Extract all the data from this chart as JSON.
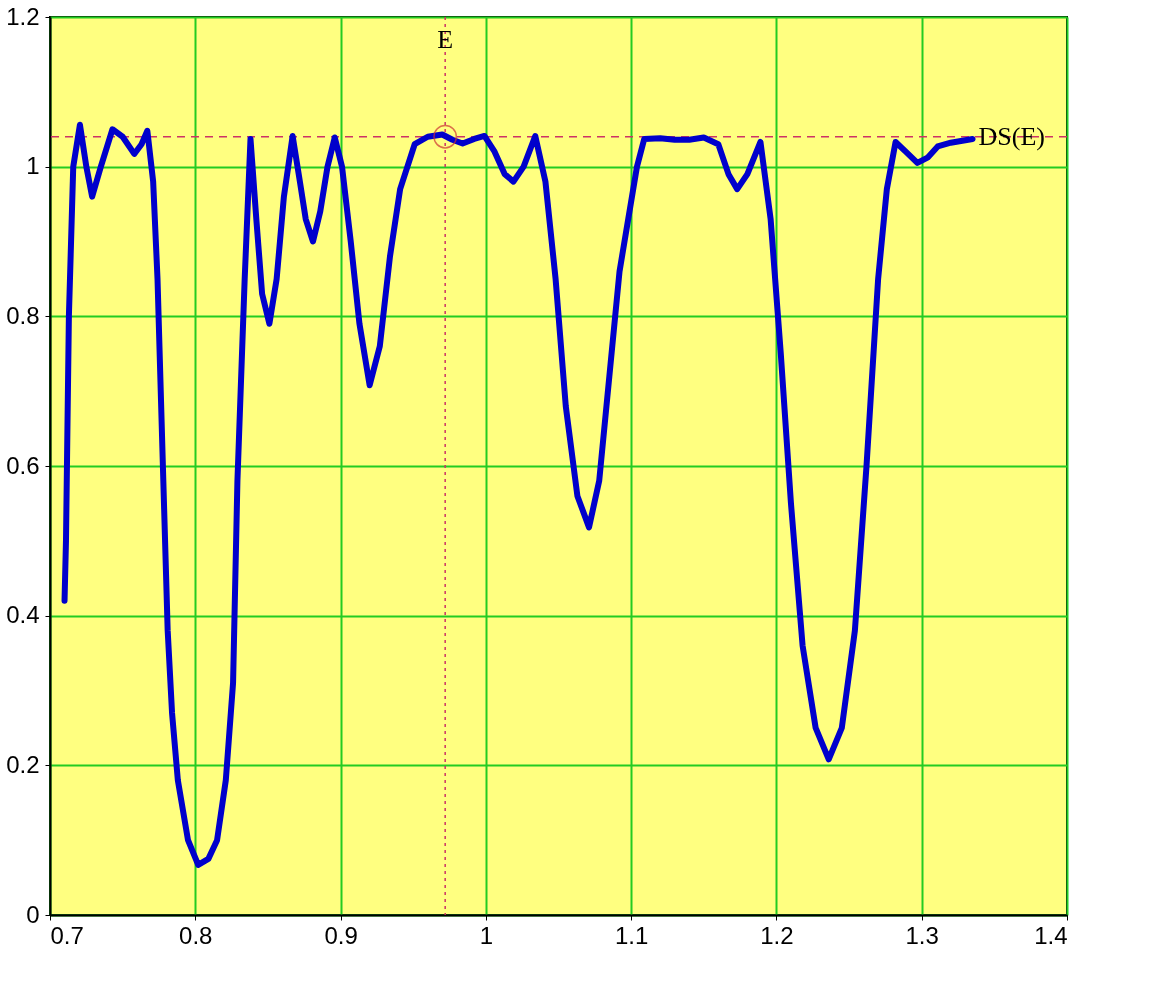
{
  "chart_data": {
    "type": "line",
    "series": [
      {
        "color": "#0000cc",
        "x": [
          0.71,
          0.711,
          0.713,
          0.716,
          0.7206,
          0.725,
          0.729,
          0.735,
          0.743,
          0.75,
          0.758,
          0.763,
          0.767,
          0.771,
          0.774,
          0.778,
          0.781,
          0.784,
          0.788,
          0.795,
          0.802,
          0.809,
          0.815,
          0.821,
          0.826,
          0.829,
          0.834,
          0.838,
          0.842,
          0.846,
          0.851,
          0.856,
          0.861,
          0.867,
          0.872,
          0.876,
          0.881,
          0.886,
          0.891,
          0.896,
          0.901,
          0.907,
          0.913,
          0.92,
          0.927,
          0.934,
          0.941,
          0.951,
          0.96,
          0.97,
          0.977,
          0.984,
          0.992,
          0.999,
          1.006,
          1.013,
          1.019,
          1.026,
          1.034,
          1.041,
          1.048,
          1.055,
          1.063,
          1.071,
          1.078,
          1.085,
          1.092,
          1.098,
          1.104,
          1.109,
          1.12,
          1.13,
          1.14,
          1.15,
          1.16,
          1.167,
          1.173,
          1.18,
          1.189,
          1.196,
          1.203,
          1.21,
          1.218,
          1.227,
          1.236,
          1.245,
          1.254,
          1.262,
          1.27,
          1.276,
          1.282,
          1.289,
          1.297,
          1.304,
          1.311,
          1.32,
          1.335
        ],
        "values": [
          0.42,
          0.5,
          0.8,
          1.0,
          1.056,
          1.0,
          0.96,
          1.0,
          1.05,
          1.04,
          1.017,
          1.03,
          1.048,
          0.98,
          0.85,
          0.58,
          0.38,
          0.27,
          0.18,
          0.1,
          0.067,
          0.075,
          0.1,
          0.18,
          0.31,
          0.58,
          0.85,
          1.037,
          0.93,
          0.83,
          0.79,
          0.85,
          0.96,
          1.041,
          0.98,
          0.93,
          0.9,
          0.94,
          1.0,
          1.039,
          1.0,
          0.9,
          0.79,
          0.708,
          0.76,
          0.88,
          0.97,
          1.03,
          1.04,
          1.043,
          1.036,
          1.031,
          1.037,
          1.041,
          1.02,
          0.99,
          0.98,
          1.0,
          1.041,
          0.98,
          0.85,
          0.68,
          0.56,
          0.518,
          0.58,
          0.72,
          0.86,
          0.93,
          1.0,
          1.037,
          1.038,
          1.036,
          1.036,
          1.039,
          1.03,
          0.99,
          0.97,
          0.99,
          1.033,
          0.93,
          0.75,
          0.55,
          0.36,
          0.25,
          0.208,
          0.25,
          0.38,
          0.6,
          0.85,
          0.97,
          1.033,
          1.02,
          1.005,
          1.012,
          1.027,
          1.032,
          1.037
        ]
      },
      {
        "type": "scatter",
        "color": "#cc3333",
        "marker": "circle",
        "x": [
          0.972
        ],
        "values": [
          1.04
        ]
      }
    ],
    "xlim": [
      0.7,
      1.4
    ],
    "xticks": [
      0.7,
      0.8,
      0.9,
      1,
      1.1,
      1.2,
      1.3,
      1.4
    ],
    "ylim": [
      0,
      1.2
    ],
    "yticks": [
      0,
      0.2,
      0.4,
      0.6,
      0.8,
      1,
      1.2
    ],
    "grid": true,
    "ref_lines": [
      {
        "axis": "x",
        "value": 0.972,
        "label": "E",
        "color": "#cc3366",
        "line_style": "dotted"
      },
      {
        "axis": "y",
        "value": 1.04,
        "label": "DS(E)",
        "color": "#cc3366",
        "line_style": "dashed"
      }
    ]
  }
}
